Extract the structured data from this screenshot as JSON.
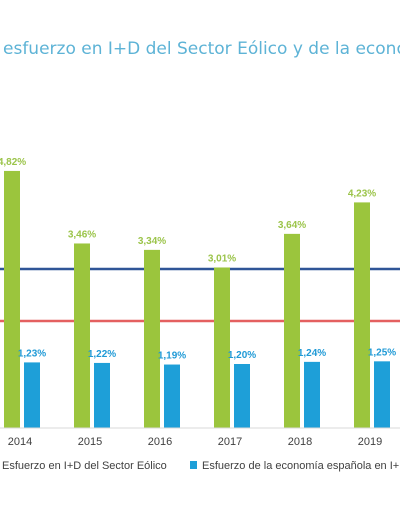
{
  "chart_data": {
    "type": "bar",
    "title": "esfuerzo en I+D del Sector Eólico y de la economí",
    "categories": [
      "2014",
      "2015",
      "2016",
      "2017",
      "2018",
      "2019"
    ],
    "series": [
      {
        "name": "Esfuerzo en I+D del Sector Eólico",
        "color": "#9bc53d",
        "values": [
          4.82,
          3.46,
          3.34,
          3.01,
          3.64,
          4.23
        ],
        "labels": [
          "4,82%",
          "3,46%",
          "3,34%",
          "3,01%",
          "3,64%",
          "4,23%"
        ]
      },
      {
        "name": "Esfuerzo de la economía española en I+D",
        "color": "#1e9fd8",
        "values": [
          1.23,
          1.22,
          1.19,
          1.2,
          1.24,
          1.25
        ],
        "labels": [
          "1,23%",
          "1,22%",
          "1,19%",
          "1,20%",
          "1,24%",
          "1,25%"
        ]
      }
    ],
    "reference_lines": [
      {
        "color": "#2f5597"
      },
      {
        "color": "#e46060"
      }
    ],
    "ylim": [
      0,
      5.4
    ],
    "grid": false,
    "legend_position": "bottom"
  }
}
